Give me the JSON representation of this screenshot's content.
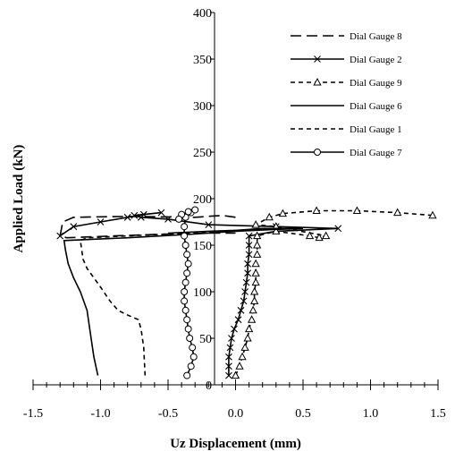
{
  "chart_data": {
    "type": "line",
    "xlabel": "Uz Displacement (mm)",
    "ylabel": "Applied Load (kN)",
    "xlim": [
      -1.5,
      1.5
    ],
    "ylim": [
      0,
      400
    ],
    "x_ticks": [
      "-1.5",
      "-1.0",
      "-0.5",
      "0.0",
      "0.5",
      "1.0",
      "1.5"
    ],
    "y_ticks": [
      "0",
      "50",
      "100",
      "150",
      "200",
      "250",
      "300",
      "350",
      "400"
    ],
    "grid": false,
    "legend_position": "top-right",
    "series": [
      {
        "name": "Dial Gauge 8",
        "style": "long-dash",
        "marker": "none",
        "points": [
          [
            0.0,
            180
          ],
          [
            -0.1,
            182
          ],
          [
            -0.3,
            180
          ],
          [
            -0.8,
            181
          ],
          [
            -1.2,
            180
          ],
          [
            -1.28,
            175
          ],
          [
            -1.3,
            160
          ],
          [
            -1.25,
            158
          ],
          [
            -0.9,
            160
          ],
          [
            -0.5,
            162
          ],
          [
            -0.2,
            163
          ],
          [
            0.0,
            163
          ]
        ]
      },
      {
        "name": "Dial Gauge 2",
        "style": "solid",
        "marker": "x",
        "points": [
          [
            -0.05,
            10
          ],
          [
            -0.05,
            20
          ],
          [
            -0.05,
            30
          ],
          [
            -0.04,
            40
          ],
          [
            -0.03,
            50
          ],
          [
            -0.01,
            60
          ],
          [
            0.02,
            70
          ],
          [
            0.04,
            80
          ],
          [
            0.06,
            90
          ],
          [
            0.07,
            100
          ],
          [
            0.08,
            110
          ],
          [
            0.09,
            120
          ],
          [
            0.09,
            130
          ],
          [
            0.1,
            140
          ],
          [
            0.1,
            150
          ],
          [
            0.1,
            160
          ],
          [
            0.3,
            165
          ],
          [
            0.76,
            168
          ],
          [
            0.3,
            170
          ],
          [
            -0.2,
            172
          ],
          [
            -0.5,
            178
          ],
          [
            -0.7,
            180
          ],
          [
            -0.75,
            182
          ],
          [
            -0.55,
            185
          ],
          [
            -0.68,
            183
          ],
          [
            -0.8,
            180
          ],
          [
            -1.0,
            175
          ],
          [
            -1.2,
            170
          ],
          [
            -1.3,
            160
          ]
        ]
      },
      {
        "name": "Dial Gauge 9",
        "style": "short-dash",
        "marker": "triangle",
        "points": [
          [
            0.0,
            10
          ],
          [
            0.03,
            20
          ],
          [
            0.05,
            30
          ],
          [
            0.07,
            40
          ],
          [
            0.09,
            50
          ],
          [
            0.1,
            60
          ],
          [
            0.12,
            70
          ],
          [
            0.13,
            80
          ],
          [
            0.14,
            90
          ],
          [
            0.14,
            100
          ],
          [
            0.15,
            110
          ],
          [
            0.15,
            120
          ],
          [
            0.15,
            130
          ],
          [
            0.16,
            140
          ],
          [
            0.16,
            150
          ],
          [
            0.16,
            160
          ],
          [
            0.3,
            165
          ],
          [
            0.55,
            160
          ],
          [
            0.62,
            158
          ],
          [
            0.67,
            160
          ],
          [
            0.3,
            170
          ],
          [
            0.15,
            172
          ],
          [
            0.25,
            180
          ],
          [
            0.35,
            184
          ],
          [
            0.6,
            187
          ],
          [
            0.9,
            187
          ],
          [
            1.2,
            185
          ],
          [
            1.46,
            182
          ]
        ]
      },
      {
        "name": "Dial Gauge 6",
        "style": "solid",
        "marker": "none",
        "points": [
          [
            -1.02,
            10
          ],
          [
            -1.05,
            30
          ],
          [
            -1.08,
            60
          ],
          [
            -1.1,
            80
          ],
          [
            -1.15,
            100
          ],
          [
            -1.2,
            115
          ],
          [
            -1.24,
            130
          ],
          [
            -1.26,
            145
          ],
          [
            -1.27,
            155
          ],
          [
            -0.8,
            158
          ],
          [
            -0.3,
            162
          ],
          [
            0.0,
            165
          ],
          [
            0.3,
            167
          ],
          [
            0.5,
            168
          ],
          [
            0.2,
            168
          ],
          [
            0.0,
            166
          ],
          [
            -0.2,
            165
          ],
          [
            -0.5,
            163
          ]
        ]
      },
      {
        "name": "Dial Gauge 1",
        "style": "short-dash",
        "marker": "none",
        "points": [
          [
            -0.67,
            10
          ],
          [
            -0.68,
            40
          ],
          [
            -0.7,
            60
          ],
          [
            -0.72,
            70
          ],
          [
            -0.8,
            75
          ],
          [
            -0.87,
            80
          ],
          [
            -0.93,
            90
          ],
          [
            -1.0,
            105
          ],
          [
            -1.05,
            115
          ],
          [
            -1.1,
            125
          ],
          [
            -1.13,
            135
          ],
          [
            -1.14,
            145
          ],
          [
            -1.15,
            155
          ],
          [
            -1.1,
            158
          ],
          [
            -0.8,
            160
          ],
          [
            -0.5,
            162
          ],
          [
            -0.3,
            163
          ],
          [
            -0.1,
            165
          ],
          [
            0.0,
            166
          ]
        ]
      },
      {
        "name": "Dial Gauge 7",
        "style": "solid",
        "marker": "circle",
        "points": [
          [
            -0.36,
            10
          ],
          [
            -0.33,
            20
          ],
          [
            -0.31,
            30
          ],
          [
            -0.32,
            40
          ],
          [
            -0.34,
            50
          ],
          [
            -0.35,
            60
          ],
          [
            -0.36,
            70
          ],
          [
            -0.37,
            80
          ],
          [
            -0.38,
            90
          ],
          [
            -0.38,
            100
          ],
          [
            -0.37,
            110
          ],
          [
            -0.36,
            120
          ],
          [
            -0.35,
            130
          ],
          [
            -0.36,
            140
          ],
          [
            -0.37,
            150
          ],
          [
            -0.38,
            160
          ],
          [
            -0.38,
            170
          ],
          [
            -0.37,
            180
          ],
          [
            -0.33,
            185
          ],
          [
            -0.3,
            188
          ],
          [
            -0.35,
            186
          ],
          [
            -0.4,
            183
          ],
          [
            -0.42,
            178
          ]
        ]
      }
    ]
  }
}
